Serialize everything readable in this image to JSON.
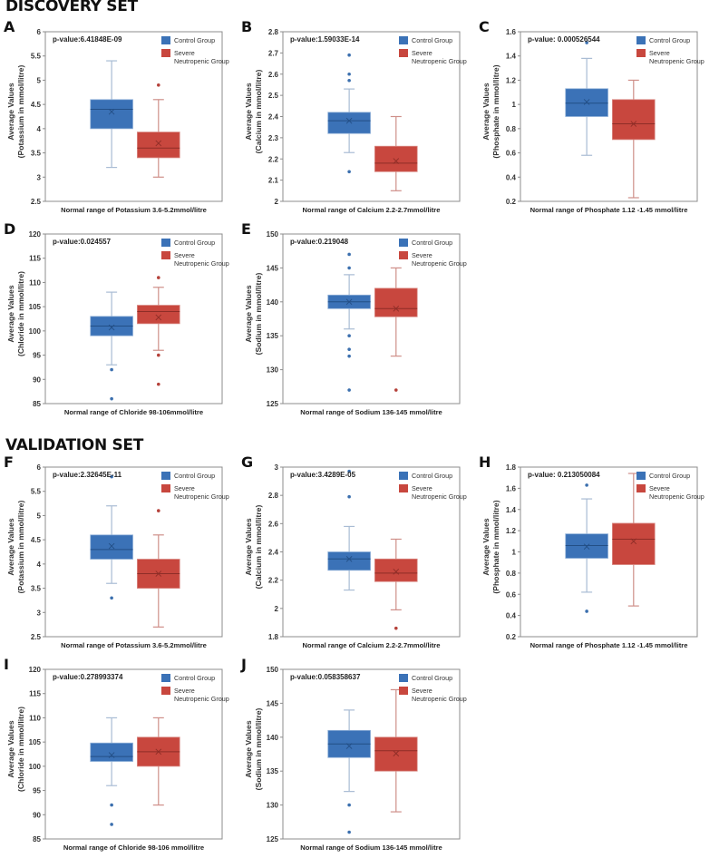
{
  "sections": {
    "discovery": "DISCOVERY SET",
    "validation": "VALIDATION SET"
  },
  "legend": {
    "control": "Control Group",
    "severe": "Severe Neutropenic Group"
  },
  "colors": {
    "control": "#3b72b7",
    "severe": "#c8473e",
    "control_whisker": "#a9bcd4",
    "severe_whisker": "#cf8f89"
  },
  "chart_data": [
    {
      "panel": "A",
      "type": "box",
      "p_value": "p-value:6.41848E-09",
      "xlabel": "Normal range of Potassium 3.6-5.2mmol/litre",
      "ylabel": [
        "Average Values",
        "(Potassium in mmol/litre)"
      ],
      "ylim": [
        2.5,
        6
      ],
      "yticks": [
        "2.5",
        "3",
        "3.5",
        "4",
        "4.5",
        "5",
        "5.5",
        "6"
      ],
      "series": [
        {
          "name": "Control Group",
          "min": 3.2,
          "q1": 4.0,
          "median": 4.4,
          "q3": 4.6,
          "max": 5.4,
          "mean": 4.35,
          "outliers": []
        },
        {
          "name": "Severe Neutropenic Group",
          "min": 3.0,
          "q1": 3.4,
          "median": 3.6,
          "q3": 3.93,
          "max": 4.6,
          "mean": 3.7,
          "outliers": [
            4.9
          ]
        }
      ]
    },
    {
      "panel": "B",
      "type": "box",
      "p_value": "p-value:1.59033E-14",
      "xlabel": "Normal range of Calcium 2.2-2.7mmol/litre",
      "ylabel": [
        "Average Values",
        "(Calcium in mmol/litre)"
      ],
      "ylim": [
        2,
        2.8
      ],
      "yticks": [
        "2",
        "2.1",
        "2.2",
        "2.3",
        "2.4",
        "2.5",
        "2.6",
        "2.7",
        "2.8"
      ],
      "series": [
        {
          "name": "Control Group",
          "min": 2.23,
          "q1": 2.32,
          "median": 2.38,
          "q3": 2.42,
          "max": 2.53,
          "mean": 2.38,
          "outliers": [
            2.14,
            2.57,
            2.6,
            2.69
          ]
        },
        {
          "name": "Severe Neutropenic Group",
          "min": 2.05,
          "q1": 2.14,
          "median": 2.18,
          "q3": 2.26,
          "max": 2.4,
          "mean": 2.19,
          "outliers": []
        }
      ]
    },
    {
      "panel": "C",
      "type": "box",
      "p_value": "p-value: 0.000526544",
      "xlabel": "Normal range of Phosphate 1.12 -1.45 mmol/litre",
      "ylabel": [
        "Average Values",
        "(Phosphate in mmol/litre)"
      ],
      "ylim": [
        0.2,
        1.6
      ],
      "yticks": [
        "0.2",
        "0.4",
        "0.6",
        "0.8",
        "1",
        "1.2",
        "1.4",
        "1.6"
      ],
      "series": [
        {
          "name": "Control Group",
          "min": 0.58,
          "q1": 0.9,
          "median": 1.01,
          "q3": 1.13,
          "max": 1.38,
          "mean": 1.02,
          "outliers": [
            1.51
          ]
        },
        {
          "name": "Severe Neutropenic Group",
          "min": 0.23,
          "q1": 0.71,
          "median": 0.84,
          "q3": 1.04,
          "max": 1.2,
          "mean": 0.84,
          "outliers": []
        }
      ]
    },
    {
      "panel": "D",
      "type": "box",
      "p_value": "p-value:0.024557",
      "xlabel": "Normal range of  Chloride 98-106mmol/litre",
      "ylabel": [
        "Average Values",
        "(Chloride in mmol/litre)"
      ],
      "ylim": [
        85,
        120
      ],
      "yticks": [
        "85",
        "90",
        "95",
        "100",
        "105",
        "110",
        "115",
        "120"
      ],
      "series": [
        {
          "name": "Control Group",
          "min": 93,
          "q1": 99,
          "median": 101,
          "q3": 103,
          "max": 108,
          "mean": 100.7,
          "outliers": [
            92,
            86
          ]
        },
        {
          "name": "Severe Neutropenic Group",
          "min": 96,
          "q1": 101.5,
          "median": 104,
          "q3": 105.3,
          "max": 109,
          "mean": 102.8,
          "outliers": [
            111,
            95,
            89
          ]
        }
      ]
    },
    {
      "panel": "E",
      "type": "box",
      "p_value": "p-value:0.219048",
      "xlabel": "Normal range of Sodium 136-145 mmol/litre",
      "ylabel": [
        "Average Values",
        "(Sodium in mmol/litre)"
      ],
      "ylim": [
        125,
        150
      ],
      "yticks": [
        "125",
        "130",
        "135",
        "140",
        "145",
        "150"
      ],
      "series": [
        {
          "name": "Control Group",
          "min": 136,
          "q1": 139,
          "median": 140,
          "q3": 141,
          "max": 144,
          "mean": 140,
          "outliers": [
            147,
            145,
            135,
            133,
            132,
            127
          ]
        },
        {
          "name": "Severe Neutropenic Group",
          "min": 132,
          "q1": 137.8,
          "median": 139,
          "q3": 142,
          "max": 145,
          "mean": 139,
          "outliers": [
            127
          ]
        }
      ]
    },
    {
      "panel": "F",
      "type": "box",
      "p_value": "p-value:2.32645E-11",
      "xlabel": "Normal range of Potassium 3.6-5.2mmol/litre",
      "ylabel": [
        "Average Values",
        "(Potassium in mmol/litre)"
      ],
      "ylim": [
        2.5,
        6
      ],
      "yticks": [
        "2.5",
        "3",
        "3.5",
        "4",
        "4.5",
        "5",
        "5.5",
        "6"
      ],
      "series": [
        {
          "name": "Control Group",
          "min": 3.6,
          "q1": 4.1,
          "median": 4.3,
          "q3": 4.6,
          "max": 5.2,
          "mean": 4.37,
          "outliers": [
            5.8,
            3.3
          ]
        },
        {
          "name": "Severe Neutropenic Group",
          "min": 2.7,
          "q1": 3.5,
          "median": 3.8,
          "q3": 4.1,
          "max": 4.6,
          "mean": 3.8,
          "outliers": [
            5.1
          ]
        }
      ]
    },
    {
      "panel": "G",
      "type": "box",
      "p_value": "p-value:3.4289E-05",
      "xlabel": "Normal range of Calcium 2.2-2.7mmol/litre",
      "ylabel": [
        "Average Values",
        "(Calcium in mmol/litre)"
      ],
      "ylim": [
        1.8,
        3
      ],
      "yticks": [
        "1.8",
        "2",
        "2.2",
        "2.4",
        "2.6",
        "2.8",
        "3"
      ],
      "series": [
        {
          "name": "Control Group",
          "min": 2.13,
          "q1": 2.27,
          "median": 2.35,
          "q3": 2.4,
          "max": 2.58,
          "mean": 2.35,
          "outliers": [
            2.97,
            2.79
          ]
        },
        {
          "name": "Severe Neutropenic Group",
          "min": 1.99,
          "q1": 2.19,
          "median": 2.25,
          "q3": 2.35,
          "max": 2.49,
          "mean": 2.26,
          "outliers": [
            1.86
          ]
        }
      ]
    },
    {
      "panel": "H",
      "type": "box",
      "p_value": "p-value: 0.213050084",
      "xlabel": "Normal range of Phosphate 1.12 -1.45 mmol/litre",
      "ylabel": [
        "Average Values",
        "(Phosphate in mmol/litre)"
      ],
      "ylim": [
        0.2,
        1.8
      ],
      "yticks": [
        "0.2",
        "0.4",
        "0.6",
        "0.8",
        "1",
        "1.2",
        "1.4",
        "1.6",
        "1.8"
      ],
      "series": [
        {
          "name": "Control Group",
          "min": 0.62,
          "q1": 0.94,
          "median": 1.06,
          "q3": 1.17,
          "max": 1.5,
          "mean": 1.05,
          "outliers": [
            1.63,
            0.44
          ]
        },
        {
          "name": "Severe Neutropenic Group",
          "min": 0.49,
          "q1": 0.88,
          "median": 1.12,
          "q3": 1.27,
          "max": 1.74,
          "mean": 1.1,
          "outliers": []
        }
      ]
    },
    {
      "panel": "I",
      "type": "box",
      "p_value": "p-value:0.278993374",
      "xlabel": "Normal range of  Chloride 98-106 mmol/litre",
      "ylabel": [
        "Average Values",
        "(Chloride in mmol/litre)"
      ],
      "ylim": [
        85,
        120
      ],
      "yticks": [
        "85",
        "90",
        "95",
        "100",
        "105",
        "110",
        "115",
        "120"
      ],
      "series": [
        {
          "name": "Control Group",
          "min": 96,
          "q1": 101,
          "median": 102,
          "q3": 104.8,
          "max": 110,
          "mean": 102.3,
          "outliers": [
            92,
            88
          ]
        },
        {
          "name": "Severe Neutropenic Group",
          "min": 92,
          "q1": 100,
          "median": 103,
          "q3": 106,
          "max": 110,
          "mean": 103,
          "outliers": []
        }
      ]
    },
    {
      "panel": "J",
      "type": "box",
      "p_value": "p-value:0.058358637",
      "xlabel": "Normal range of Sodium 136-145 mmol/litre",
      "ylabel": [
        "Average Values",
        "(Sodium in mmol/litre)"
      ],
      "ylim": [
        125,
        150
      ],
      "yticks": [
        "125",
        "130",
        "135",
        "140",
        "145",
        "150"
      ],
      "series": [
        {
          "name": "Control Group",
          "min": 132,
          "q1": 137,
          "median": 139,
          "q3": 141,
          "max": 144,
          "mean": 138.7,
          "outliers": [
            130,
            126
          ]
        },
        {
          "name": "Severe Neutropenic Group",
          "min": 129,
          "q1": 135,
          "median": 138,
          "q3": 140,
          "max": 147,
          "mean": 137.6,
          "outliers": []
        }
      ]
    }
  ]
}
